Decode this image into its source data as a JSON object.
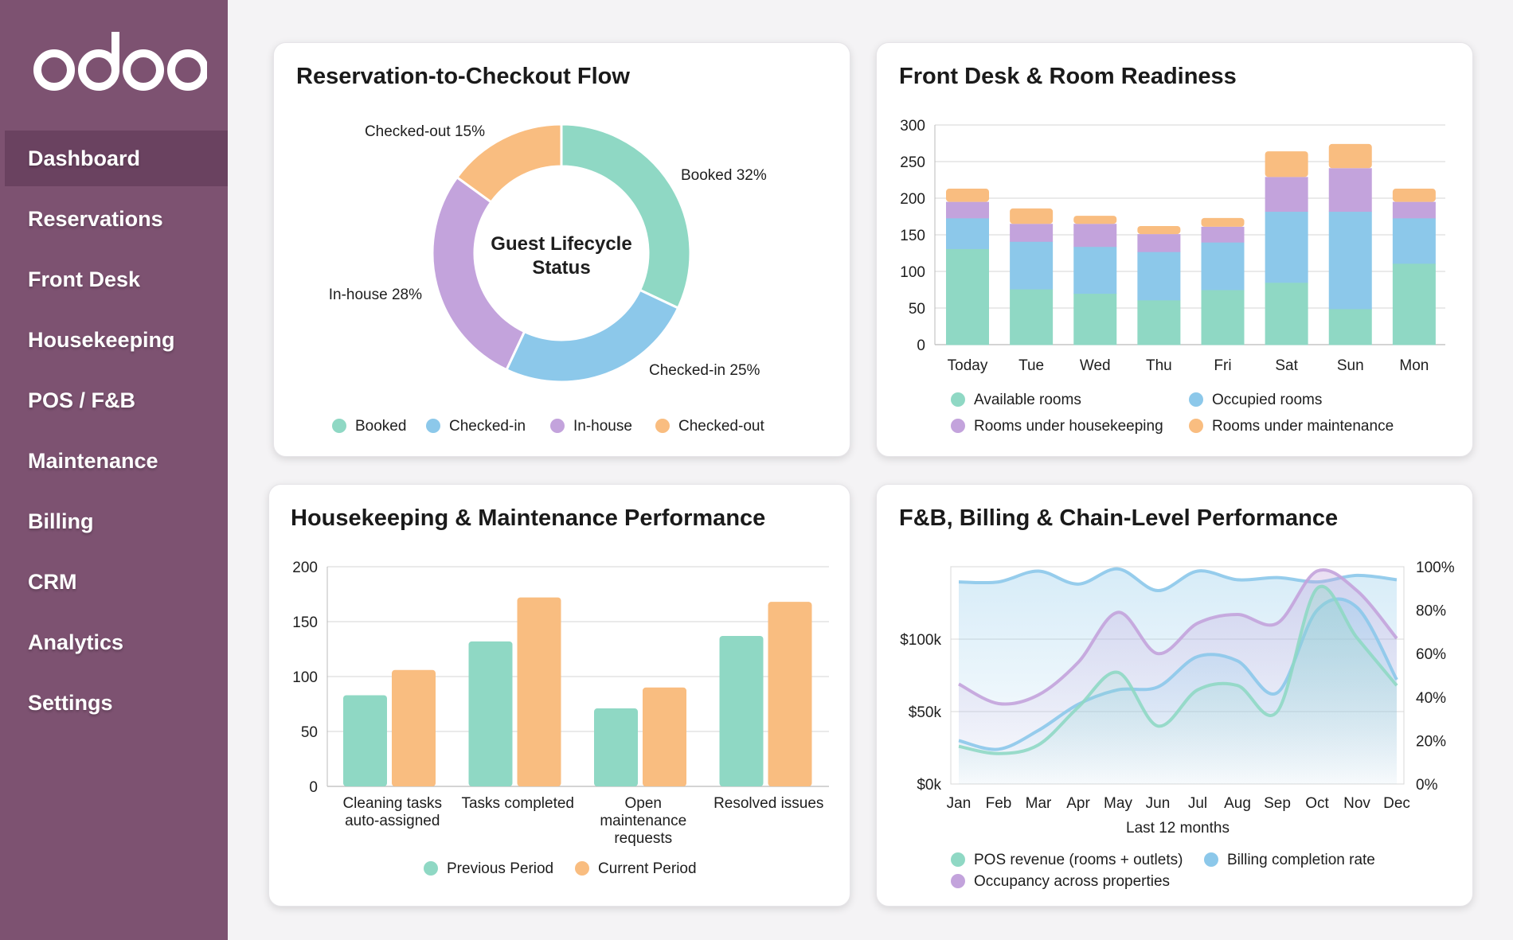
{
  "app": {
    "logo_text": "odoo"
  },
  "sidebar": {
    "items": [
      "Dashboard",
      "Reservations",
      "Front Desk",
      "Housekeeping",
      "POS / F&B",
      "Maintenance",
      "Billing",
      "CRM",
      "Analytics",
      "Settings"
    ],
    "active": "Dashboard"
  },
  "colors": {
    "sidebar": "#7d5271",
    "teal": "#8fd8c4",
    "blue": "#8cc8ea",
    "purple": "#c3a3dc",
    "orange": "#f9bd80"
  },
  "cards": {
    "flow": {
      "title": "Reservation-to-Checkout Flow"
    },
    "frontdesk": {
      "title": "Front Desk & Room Readiness"
    },
    "housekeeping": {
      "title": "Housekeeping & Maintenance Performance"
    },
    "fnb": {
      "title": "F&B, Billing & Chain-Level Performance"
    }
  },
  "chart_data": [
    {
      "id": "flow",
      "type": "pie",
      "donut": true,
      "center_label": "Guest Lifecycle Status",
      "slices": [
        {
          "name": "Booked",
          "value": 32,
          "color": "#8fd8c4"
        },
        {
          "name": "Checked-in",
          "value": 25,
          "color": "#8cc8ea"
        },
        {
          "name": "In-house",
          "value": 28,
          "color": "#c3a3dc"
        },
        {
          "name": "Checked-out",
          "value": 15,
          "color": "#f9bd80"
        }
      ],
      "unit": "%",
      "legend": "bottom"
    },
    {
      "id": "frontdesk",
      "type": "bar",
      "stacked": true,
      "categories": [
        "Today",
        "Tue",
        "Wed",
        "Thu",
        "Fri",
        "Sat",
        "Sun",
        "Mon"
      ],
      "ylim": [
        0,
        300
      ],
      "yticks": [
        0,
        50,
        100,
        150,
        200,
        250,
        300
      ],
      "grid": true,
      "legend": "bottom",
      "series": [
        {
          "name": "Available rooms",
          "color": "#8fd8c4",
          "values": [
            131,
            76,
            70,
            61,
            75,
            85,
            49,
            111
          ]
        },
        {
          "name": "Occupied rooms",
          "color": "#8cc8ea",
          "values": [
            42,
            65,
            64,
            66,
            65,
            97,
            133,
            62
          ]
        },
        {
          "name": "Rooms under housekeeping",
          "color": "#c3a3dc",
          "values": [
            22,
            24,
            31,
            24,
            21,
            47,
            59,
            22
          ]
        },
        {
          "name": "Rooms under maintenance",
          "color": "#f9bd80",
          "values": [
            18,
            21,
            11,
            11,
            12,
            35,
            33,
            18
          ]
        }
      ]
    },
    {
      "id": "housekeeping",
      "type": "bar",
      "categories": [
        "Cleaning tasks\nauto-assigned",
        "Tasks completed",
        "Open\nmaintenance\nrequests",
        "Resolved issues"
      ],
      "ylim": [
        0,
        200
      ],
      "yticks": [
        0,
        50,
        100,
        150,
        200
      ],
      "grid": true,
      "legend": "bottom",
      "series": [
        {
          "name": "Previous Period",
          "color": "#8fd8c4",
          "values": [
            83,
            132,
            71,
            137
          ]
        },
        {
          "name": "Current Period",
          "color": "#f9bd80",
          "values": [
            106,
            172,
            90,
            168
          ]
        }
      ]
    },
    {
      "id": "fnb",
      "type": "line",
      "smooth": true,
      "area": true,
      "categories": [
        "Jan",
        "Feb",
        "Mar",
        "Apr",
        "May",
        "Jun",
        "Jul",
        "Aug",
        "Sep",
        "Oct",
        "Nov",
        "Dec"
      ],
      "xlabel": "Last 12 months",
      "y_left": {
        "ylim": [
          0,
          150
        ],
        "ticks": [
          0,
          50,
          100
        ],
        "tick_labels": [
          "$0k",
          "$50k",
          "$100k"
        ]
      },
      "y_right": {
        "ylim": [
          0,
          100
        ],
        "ticks": [
          0,
          20,
          40,
          60,
          80,
          100
        ],
        "tick_labels": [
          "0%",
          "20%",
          "40%",
          "60%",
          "80%",
          "100%"
        ]
      },
      "grid": true,
      "legend": "bottom",
      "series": [
        {
          "name": "POS revenue (rooms + outlets)",
          "axis": "left",
          "color": "#8fd8c4",
          "values": [
            26,
            21,
            27,
            53,
            77,
            40,
            65,
            68,
            50,
            135,
            101,
            68
          ]
        },
        {
          "name": "Billing completion rate",
          "axis": "right",
          "color": "#8cc8ea",
          "values": [
            93,
            93,
            98,
            92,
            99,
            89,
            98,
            94,
            95,
            93,
            96,
            94
          ]
        },
        {
          "name": "Occupancy across properties",
          "axis": "right",
          "color": "#c3a3dc",
          "values": [
            46,
            37,
            41,
            56,
            79,
            60,
            74,
            78,
            74,
            98,
            89,
            67
          ]
        },
        {
          "axis": "left",
          "color": "#8cc8ea",
          "values": [
            30,
            24,
            37,
            55,
            65,
            67,
            88,
            85,
            63,
            120,
            122,
            72
          ]
        }
      ]
    }
  ]
}
